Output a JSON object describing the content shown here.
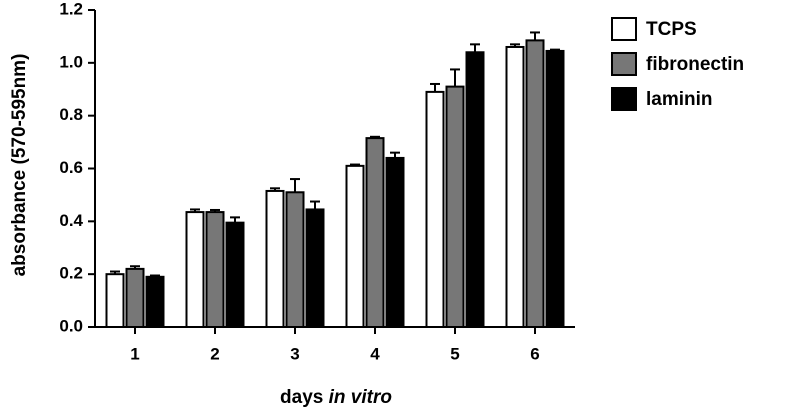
{
  "chart_data": {
    "type": "bar",
    "xlabel_parts": [
      "days",
      "in vitro"
    ],
    "ylabel": "absorbance (570-595nm)",
    "categories": [
      "1",
      "2",
      "3",
      "4",
      "5",
      "6"
    ],
    "series": [
      {
        "name": "TCPS",
        "color": "#ffffff",
        "values": [
          0.2,
          0.435,
          0.515,
          0.61,
          0.89,
          1.06
        ],
        "errors": [
          0.01,
          0.01,
          0.01,
          0.005,
          0.03,
          0.01
        ]
      },
      {
        "name": "fibronectin",
        "color": "#777777",
        "values": [
          0.22,
          0.435,
          0.51,
          0.715,
          0.91,
          1.085
        ],
        "errors": [
          0.01,
          0.008,
          0.05,
          0.005,
          0.065,
          0.03
        ]
      },
      {
        "name": "laminin",
        "color": "#000000",
        "values": [
          0.19,
          0.395,
          0.445,
          0.64,
          1.04,
          1.045
        ],
        "errors": [
          0.005,
          0.02,
          0.03,
          0.02,
          0.03,
          0.005
        ]
      }
    ],
    "ylim": [
      0,
      1.2
    ],
    "yticks": [
      {
        "value": 0,
        "label": "0.0"
      },
      0.2,
      0.4,
      0.6,
      0.8,
      {
        "value": 1,
        "label": "1.0"
      },
      1.2
    ],
    "legend": "upper-right"
  }
}
